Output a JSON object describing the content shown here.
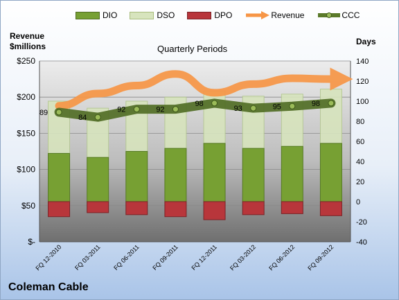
{
  "chart_data": {
    "type": "bar",
    "title": "Quarterly Periods",
    "company": "Coleman Cable",
    "left_axis_label": [
      "Revenue",
      "$millions"
    ],
    "right_axis_label": "Days",
    "left_axis_ticks": [
      "$250",
      "$200",
      "$150",
      "$100",
      "$50",
      "$-"
    ],
    "right_axis_ticks": [
      "140",
      "120",
      "100",
      "80",
      "60",
      "40",
      "20",
      "0",
      "-20",
      "-40"
    ],
    "left_ylim": [
      0,
      250
    ],
    "right_ylim": [
      -40,
      140
    ],
    "categories": [
      "FQ 12-2010",
      "FQ 03-2011",
      "FQ 06-2011",
      "FQ 09-2011",
      "FQ 12-2011",
      "FQ 03-2012",
      "FQ 06-2012",
      "FQ 09-2012"
    ],
    "legend_position": "top",
    "series": [
      {
        "name": "DIO",
        "axis": "right",
        "color": "#77a033",
        "values": [
          48,
          44,
          50,
          53,
          58,
          53,
          55,
          58
        ]
      },
      {
        "name": "DSO",
        "axis": "right",
        "color": "#d7e4bd",
        "values": [
          52,
          49,
          50,
          51,
          52,
          52,
          52,
          54
        ]
      },
      {
        "name": "DPO",
        "axis": "right",
        "color": "#b8363b",
        "values": [
          -15,
          -11,
          -13,
          -15,
          -18,
          -13,
          -12,
          -14
        ]
      },
      {
        "name": "Revenue",
        "axis": "left",
        "color": "#f79646",
        "values": [
          188,
          205,
          216,
          232,
          206,
          218,
          226,
          225
        ]
      },
      {
        "name": "CCC",
        "axis": "right",
        "color": "#5b7a2a",
        "values": [
          89,
          84,
          92,
          92,
          98,
          93,
          95,
          98
        ]
      }
    ]
  }
}
